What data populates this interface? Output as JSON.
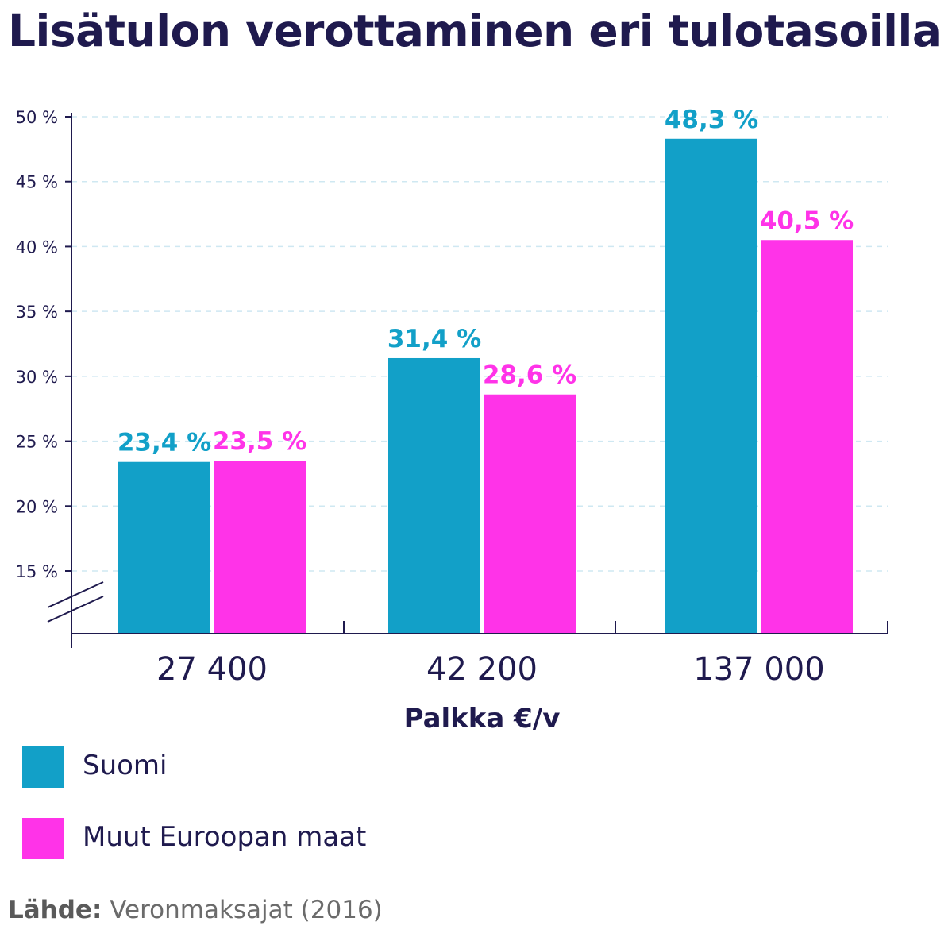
{
  "chart_data": {
    "type": "bar",
    "title": "Lisätulon verottaminen eri tulotasoilla",
    "xlabel": "Palkka €/v",
    "ylabel": "",
    "categories": [
      "27 400",
      "42 200",
      "137 000"
    ],
    "series": [
      {
        "name": "Suomi",
        "color": "#12a0c8",
        "values": [
          23.4,
          31.4,
          48.3
        ],
        "labels": [
          "23,4 %",
          "31,4 %",
          "48,3 %"
        ],
        "label_color": "#12a0c8"
      },
      {
        "name": "Muut Euroopan maat",
        "color": "#ff33e8",
        "values": [
          23.5,
          28.6,
          40.5
        ],
        "labels": [
          "23,5 %",
          "28,6 %",
          "40,5 %"
        ],
        "label_color": "#ff33e8"
      }
    ],
    "ylim": [
      10,
      50
    ],
    "yticks": [
      15,
      20,
      25,
      30,
      35,
      40,
      45,
      50
    ],
    "ytick_labels": [
      "15 %",
      "20 %",
      "25 %",
      "30 %",
      "35 %",
      "40 %",
      "45 %",
      "50 %"
    ],
    "y_axis_break": true,
    "grid": "horizontal dashed",
    "legend": "bottom-left"
  },
  "source": {
    "prefix": "Lähde:",
    "text": " Veronmaksajat (2016)"
  }
}
